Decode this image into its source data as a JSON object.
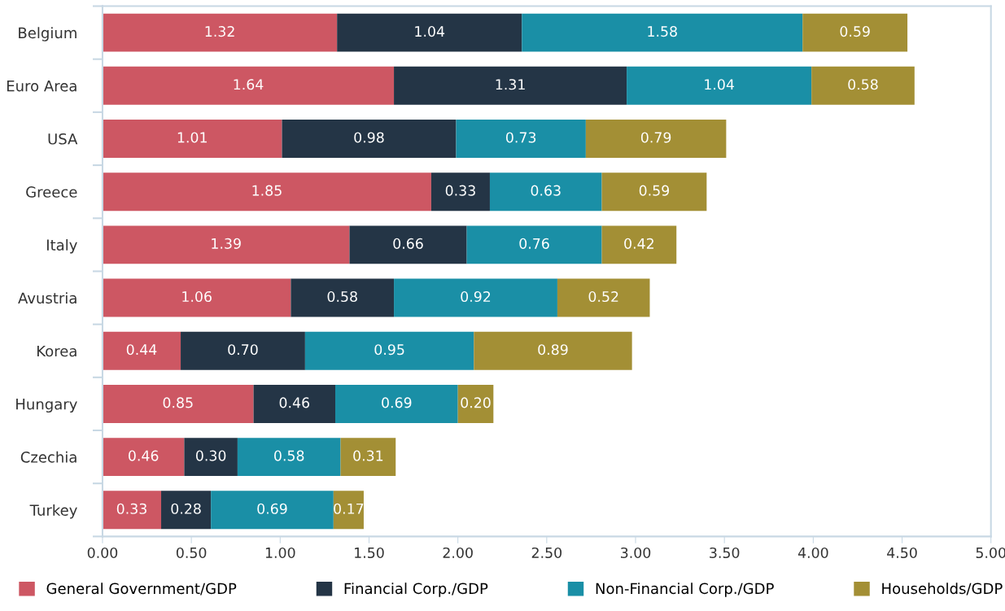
{
  "chart_data": {
    "type": "bar",
    "orientation": "horizontal",
    "stacked": true,
    "categories": [
      "Belgium",
      "Euro Area",
      "USA",
      "Greece",
      "Italy",
      "Avustria",
      "Korea",
      "Hungary",
      "Czechia",
      "Turkey"
    ],
    "series": [
      {
        "name": "General Government/GDP",
        "color": "#cd5763",
        "values": [
          1.32,
          1.64,
          1.01,
          1.85,
          1.39,
          1.06,
          0.44,
          0.85,
          0.46,
          0.33
        ],
        "value_labels": [
          "1.32",
          "1.64",
          "1.01",
          "1.85",
          "1.39",
          "1.06",
          "0.44",
          "0.85",
          "0.46",
          "0.33"
        ]
      },
      {
        "name": "Financial Corp./GDP",
        "color": "#243546",
        "values": [
          1.04,
          1.31,
          0.98,
          0.33,
          0.66,
          0.58,
          0.7,
          0.46,
          0.3,
          0.28
        ],
        "value_labels": [
          "1.04",
          "1.31",
          "0.98",
          "0.33",
          "0.66",
          "0.58",
          "0.70",
          "0.46",
          "0.30",
          "0.28"
        ]
      },
      {
        "name": "Non-Financial Corp./GDP",
        "color": "#1a8fa6",
        "values": [
          1.58,
          1.04,
          0.73,
          0.63,
          0.76,
          0.92,
          0.95,
          0.69,
          0.58,
          0.69
        ],
        "value_labels": [
          "1.58",
          "1.04",
          "0.73",
          "0.63",
          "0.76",
          "0.92",
          "0.95",
          "0.69",
          "0.58",
          "0.69"
        ]
      },
      {
        "name": "Households/GDP",
        "color": "#a38f35",
        "values": [
          0.59,
          0.58,
          0.79,
          0.59,
          0.42,
          0.52,
          0.89,
          0.2,
          0.31,
          0.17
        ],
        "value_labels": [
          "0.59",
          "0.58",
          "0.79",
          "0.59",
          "0.42",
          "0.52",
          "0.89",
          "0.20",
          "0.31",
          "0.17"
        ]
      }
    ],
    "xlim": [
      0,
      5
    ],
    "xticks": [
      {
        "value": 0,
        "label": "0.00"
      },
      {
        "value": 0.5,
        "label": "0.50"
      },
      {
        "value": 1,
        "label": "1.00"
      },
      {
        "value": 1.5,
        "label": "1.50"
      },
      {
        "value": 2,
        "label": "2.00"
      },
      {
        "value": 2.5,
        "label": "2.50"
      },
      {
        "value": 3,
        "label": "3.00"
      },
      {
        "value": 3.5,
        "label": "3.50"
      },
      {
        "value": 4,
        "label": "4.00"
      },
      {
        "value": 4.5,
        "label": "4.50"
      },
      {
        "value": 5,
        "label": "5.00"
      }
    ],
    "grid": false,
    "legend": "bottom"
  }
}
